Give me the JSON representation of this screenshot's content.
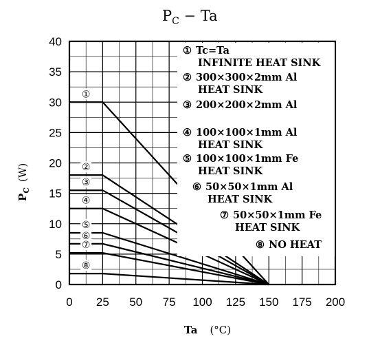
{
  "chart_data": {
    "type": "line",
    "title_main": "P",
    "title_sub": "C",
    "title_rest": "  −  Ta",
    "xlabel": "Ta",
    "xunit": "(°C)",
    "ylabel_main": "P",
    "ylabel_sub": "C",
    "ylabel_unit": "(W)",
    "xlim": [
      0,
      200
    ],
    "ylim": [
      0,
      40
    ],
    "x_ticks": [
      0,
      25,
      50,
      75,
      100,
      125,
      150,
      175,
      200
    ],
    "y_ticks": [
      0,
      5,
      10,
      15,
      20,
      25,
      30,
      35,
      40
    ],
    "grid": true,
    "series": [
      {
        "marker": "①",
        "points": [
          [
            0,
            30
          ],
          [
            25,
            30
          ],
          [
            150,
            0
          ]
        ]
      },
      {
        "marker": "②",
        "points": [
          [
            0,
            18
          ],
          [
            25,
            18
          ],
          [
            150,
            0
          ]
        ]
      },
      {
        "marker": "③",
        "points": [
          [
            0,
            15.5
          ],
          [
            25,
            15.5
          ],
          [
            150,
            0
          ]
        ]
      },
      {
        "marker": "④",
        "points": [
          [
            0,
            12.5
          ],
          [
            25,
            12.5
          ],
          [
            150,
            0
          ]
        ]
      },
      {
        "marker": "⑤",
        "points": [
          [
            0,
            8.5
          ],
          [
            25,
            8.5
          ],
          [
            150,
            0
          ]
        ]
      },
      {
        "marker": "⑥",
        "points": [
          [
            0,
            6.7
          ],
          [
            25,
            6.7
          ],
          [
            150,
            0
          ]
        ]
      },
      {
        "marker": "⑦",
        "points": [
          [
            0,
            5.2
          ],
          [
            25,
            5.2
          ],
          [
            150,
            0
          ]
        ]
      },
      {
        "marker": "⑧",
        "points": [
          [
            0,
            1.8
          ],
          [
            25,
            1.8
          ],
          [
            150,
            0
          ]
        ]
      }
    ],
    "legend": [
      {
        "marker": "①",
        "line1": "Tc=Ta",
        "line2": "INFINITE HEAT SINK"
      },
      {
        "marker": "②",
        "line1": "300×300×2mm Al",
        "line2": "HEAT SINK"
      },
      {
        "marker": "③",
        "line1": "200×200×2mm Al",
        "line2": ""
      },
      {
        "marker": "④",
        "line1": "100×100×1mm Al",
        "line2": "HEAT SINK"
      },
      {
        "marker": "⑤",
        "line1": "100×100×1mm Fe",
        "line2": "HEAT SINK"
      },
      {
        "marker": "⑥",
        "line1": "50×50×1mm Al",
        "line2": "HEAT SINK"
      },
      {
        "marker": "⑦",
        "line1": "50×50×1mm Fe",
        "line2": "HEAT SINK"
      },
      {
        "marker": "⑧",
        "line1": "NO HEAT",
        "line2": ""
      }
    ]
  }
}
